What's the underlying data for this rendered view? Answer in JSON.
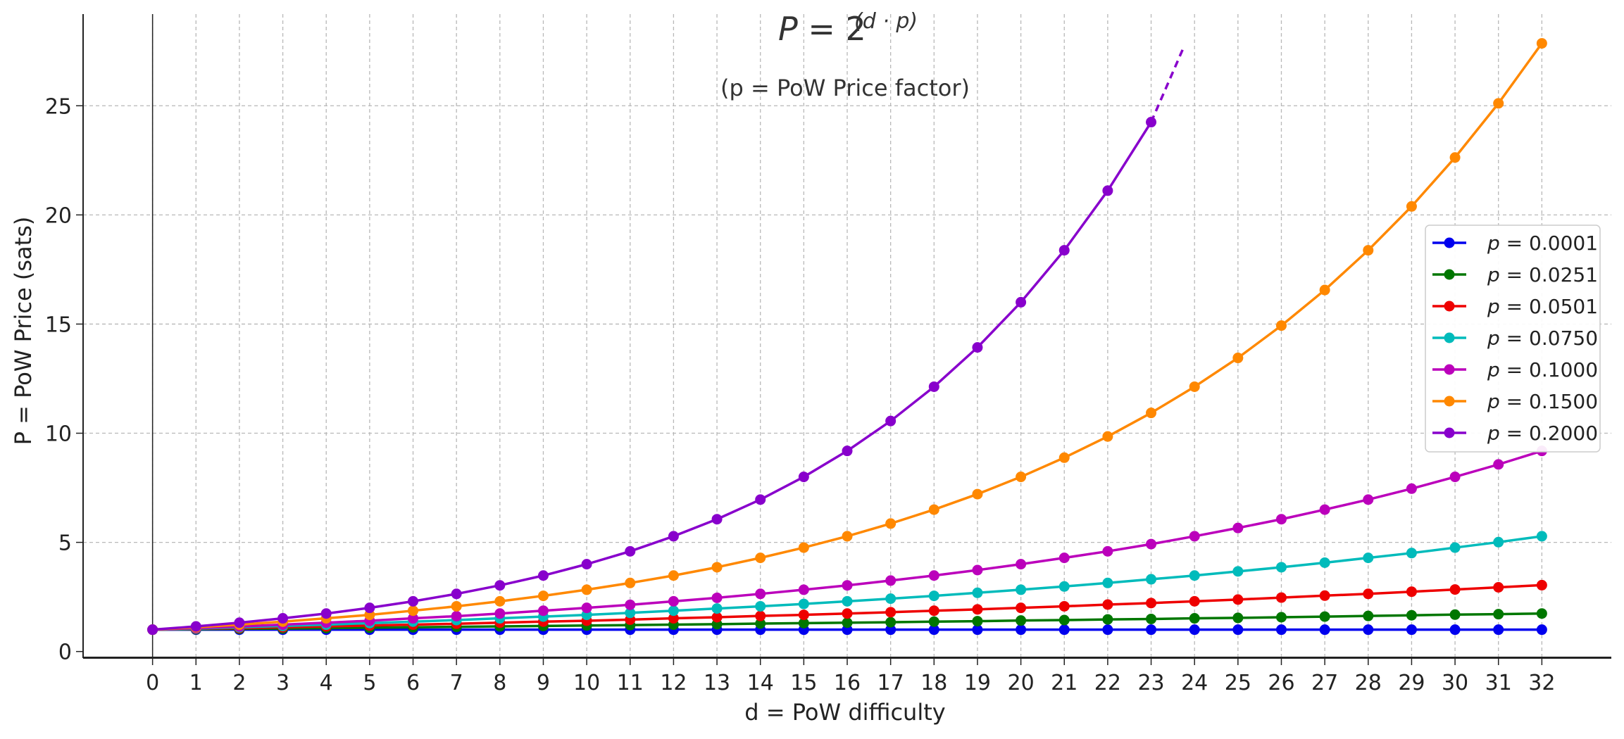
{
  "chart_data": {
    "type": "line",
    "title": {
      "lhs": "P",
      "eq": " = ",
      "base": "2",
      "exponent": "(d · p)"
    },
    "subtitle": "(p = PoW Price factor)",
    "xlabel": "d = PoW difficulty",
    "ylabel": "P = PoW Price (sats)",
    "x": [
      0,
      1,
      2,
      3,
      4,
      5,
      6,
      7,
      8,
      9,
      10,
      11,
      12,
      13,
      14,
      15,
      16,
      17,
      18,
      19,
      20,
      21,
      22,
      23,
      24,
      25,
      26,
      27,
      28,
      29,
      30,
      31,
      32
    ],
    "xticks": [
      "0",
      "1",
      "2",
      "3",
      "4",
      "5",
      "6",
      "7",
      "8",
      "9",
      "10",
      "11",
      "12",
      "13",
      "14",
      "15",
      "16",
      "17",
      "18",
      "19",
      "20",
      "21",
      "22",
      "23",
      "24",
      "25",
      "26",
      "27",
      "28",
      "29",
      "30",
      "31",
      "32"
    ],
    "xlim": [
      -1.6,
      33.6
    ],
    "ylim": [
      -0.3,
      29.2
    ],
    "yticks": [
      {
        "value": 0,
        "label": "0"
      },
      {
        "value": 5,
        "label": "5"
      },
      {
        "value": 10,
        "label": "10"
      },
      {
        "value": 15,
        "label": "15"
      },
      {
        "value": 20,
        "label": "20"
      },
      {
        "value": 25,
        "label": "25"
      }
    ],
    "grid": true,
    "legend_position": "right",
    "series": [
      {
        "name": "p = 0.0001",
        "p": "0.0001",
        "color": "#0000ee",
        "values": [
          1,
          1,
          1,
          1,
          1,
          1,
          1,
          1,
          1,
          1,
          1,
          1,
          1,
          1,
          1,
          1,
          1,
          1,
          1,
          1,
          1,
          1,
          1,
          1,
          1,
          1,
          1,
          1,
          1,
          1,
          1,
          1,
          1
        ]
      },
      {
        "name": "p = 0.0251",
        "p": "0.0251",
        "color": "#007700",
        "values": [
          1.0,
          1.02,
          1.04,
          1.05,
          1.07,
          1.09,
          1.11,
          1.13,
          1.15,
          1.17,
          1.19,
          1.21,
          1.23,
          1.25,
          1.28,
          1.3,
          1.32,
          1.34,
          1.37,
          1.39,
          1.42,
          1.44,
          1.47,
          1.49,
          1.52,
          1.54,
          1.57,
          1.6,
          1.63,
          1.66,
          1.69,
          1.71,
          1.74
        ]
      },
      {
        "name": "p = 0.0501",
        "p": "0.0501",
        "color": "#ee0000",
        "values": [
          1.0,
          1.04,
          1.07,
          1.11,
          1.15,
          1.19,
          1.23,
          1.27,
          1.32,
          1.37,
          1.41,
          1.46,
          1.52,
          1.57,
          1.63,
          1.68,
          1.74,
          1.8,
          1.87,
          1.93,
          2.0,
          2.07,
          2.15,
          2.22,
          2.3,
          2.38,
          2.47,
          2.56,
          2.64,
          2.74,
          2.84,
          2.94,
          3.04
        ]
      },
      {
        "name": "p = 0.0750",
        "p": "0.0750",
        "color": "#00bbbb",
        "values": [
          1.0,
          1.05,
          1.11,
          1.17,
          1.23,
          1.3,
          1.37,
          1.44,
          1.52,
          1.6,
          1.68,
          1.77,
          1.87,
          1.97,
          2.07,
          2.18,
          2.3,
          2.42,
          2.55,
          2.69,
          2.83,
          2.98,
          3.14,
          3.31,
          3.48,
          3.67,
          3.86,
          4.07,
          4.29,
          4.51,
          4.76,
          5.01,
          5.28
        ]
      },
      {
        "name": "p = 0.1000",
        "p": "0.1000",
        "color": "#bb00bb",
        "values": [
          1.0,
          1.07,
          1.15,
          1.23,
          1.32,
          1.41,
          1.52,
          1.62,
          1.74,
          1.87,
          2.0,
          2.14,
          2.3,
          2.46,
          2.64,
          2.83,
          3.03,
          3.25,
          3.48,
          3.73,
          4.0,
          4.29,
          4.59,
          4.92,
          5.28,
          5.66,
          6.06,
          6.5,
          6.96,
          7.46,
          8.0,
          8.57,
          9.19
        ]
      },
      {
        "name": "p = 0.1500",
        "p": "0.1500",
        "color": "#ff8800",
        "values": [
          1.0,
          1.11,
          1.23,
          1.37,
          1.52,
          1.68,
          1.87,
          2.07,
          2.3,
          2.55,
          2.83,
          3.14,
          3.48,
          3.86,
          4.29,
          4.76,
          5.28,
          5.86,
          6.5,
          7.21,
          8.0,
          8.88,
          9.85,
          10.93,
          12.13,
          13.45,
          14.93,
          16.56,
          18.38,
          20.39,
          22.63,
          25.11,
          27.86
        ]
      },
      {
        "name": "p = 0.2000",
        "p": "0.2000",
        "color": "#8800cc",
        "values": [
          1.0,
          1.15,
          1.32,
          1.52,
          1.74,
          2.0,
          2.3,
          2.64,
          3.03,
          3.48,
          4.0,
          4.59,
          5.28,
          6.06,
          6.96,
          8.0,
          9.19,
          10.56,
          12.13,
          13.93,
          16.0,
          18.38,
          21.11,
          24.25,
          null,
          null,
          null,
          null,
          null,
          null,
          null,
          null,
          null
        ],
        "extension": {
          "x": [
            23,
            23.75
          ],
          "y": [
            24.25,
            27.68
          ]
        }
      }
    ]
  }
}
